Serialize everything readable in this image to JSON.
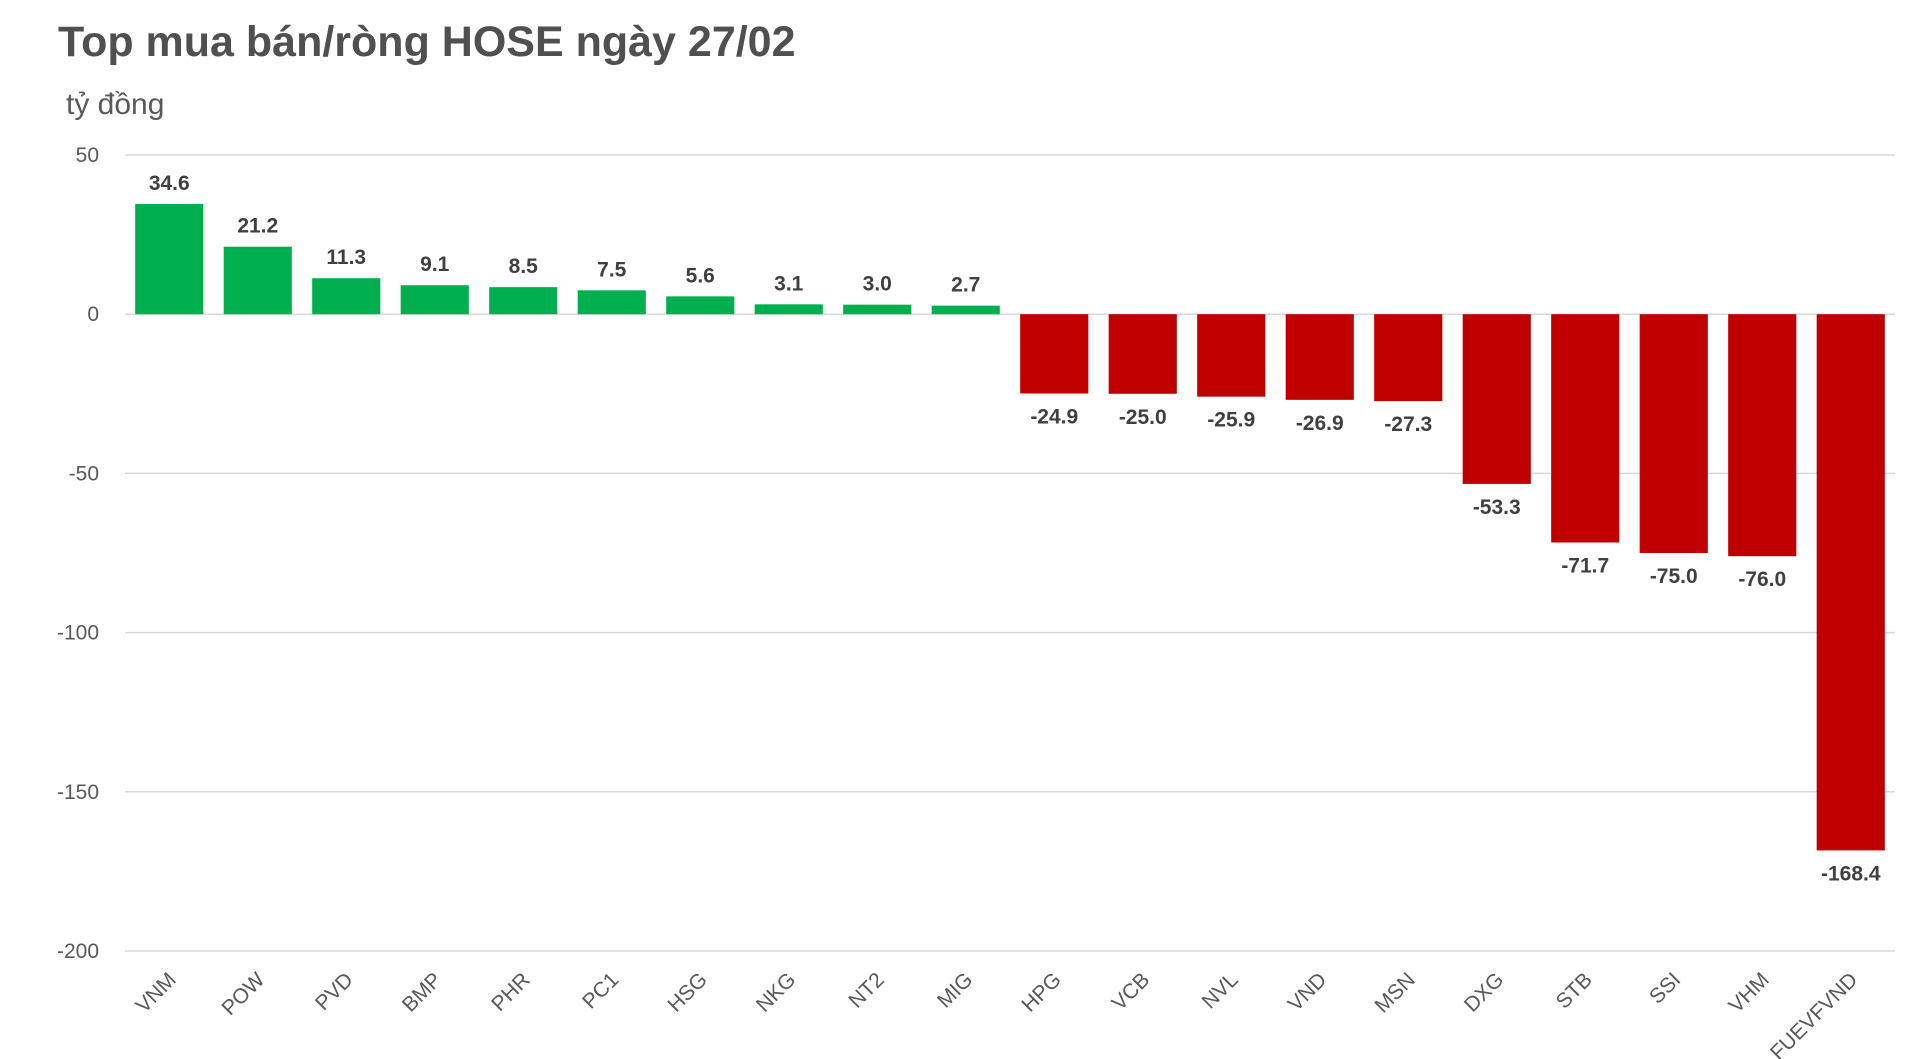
{
  "chart_data": {
    "type": "bar",
    "title": "Top mua bán/ròng HOSE ngày 27/02",
    "ylabel": "tỷ đồng",
    "xlabel": "",
    "ylim": [
      -200,
      50
    ],
    "yticks": [
      50,
      0,
      -50,
      -100,
      -150,
      -200
    ],
    "grid": true,
    "colors": {
      "positive": "#00B050",
      "negative": "#C00000",
      "grid": "#d9d9d9"
    },
    "categories": [
      "VNM",
      "POW",
      "PVD",
      "BMP",
      "PHR",
      "PC1",
      "HSG",
      "NKG",
      "NT2",
      "MIG",
      "HPG",
      "VCB",
      "NVL",
      "VND",
      "MSN",
      "DXG",
      "STB",
      "SSI",
      "VHM",
      "FUEVFVND"
    ],
    "values": [
      34.6,
      21.2,
      11.3,
      9.1,
      8.5,
      7.5,
      5.6,
      3.1,
      3.0,
      2.7,
      -24.9,
      -25.0,
      -25.9,
      -26.9,
      -27.3,
      -53.3,
      -71.7,
      -75.0,
      -76.0,
      -168.4
    ],
    "labels": [
      "34.6",
      "21.2",
      "11.3",
      "9.1",
      "8.5",
      "7.5",
      "5.6",
      "3.1",
      "3.0",
      "2.7",
      "-24.9",
      "-25.0",
      "-25.9",
      "-26.9",
      "-27.3",
      "-53.3",
      "-71.7",
      "-75.0",
      "-76.0",
      "-168.4"
    ]
  }
}
